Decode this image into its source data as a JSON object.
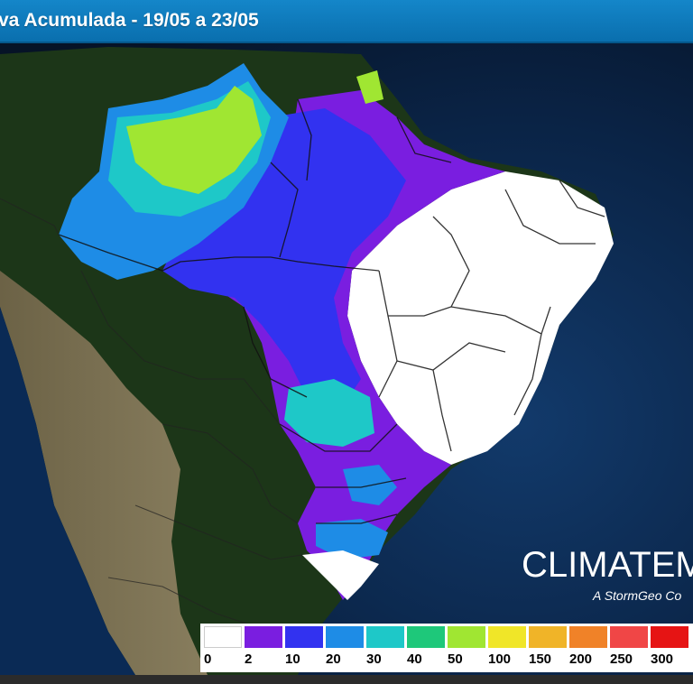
{
  "title": "va Acumulada - 19/05 a 23/05",
  "brand": {
    "name": "CLIMATEMP",
    "tagline": "A StormGeo Co"
  },
  "legend": {
    "bins": [
      {
        "label": "0",
        "color": "#ffffff"
      },
      {
        "label": "2",
        "color": "#7a1ee0"
      },
      {
        "label": "10",
        "color": "#3232f0"
      },
      {
        "label": "20",
        "color": "#1e8ce6"
      },
      {
        "label": "30",
        "color": "#1ec8c8"
      },
      {
        "label": "40",
        "color": "#1ec87a"
      },
      {
        "label": "50",
        "color": "#a0e632"
      },
      {
        "label": "100",
        "color": "#f0e628"
      },
      {
        "label": "150",
        "color": "#f0b428"
      },
      {
        "label": "200",
        "color": "#f08228"
      },
      {
        "label": "250",
        "color": "#f04646"
      },
      {
        "label": "300",
        "color": "#e61414"
      }
    ]
  },
  "colors": {
    "ocean": "#0b1a33",
    "land": "#1f3a1b",
    "title_bar": "#0a6fae"
  }
}
